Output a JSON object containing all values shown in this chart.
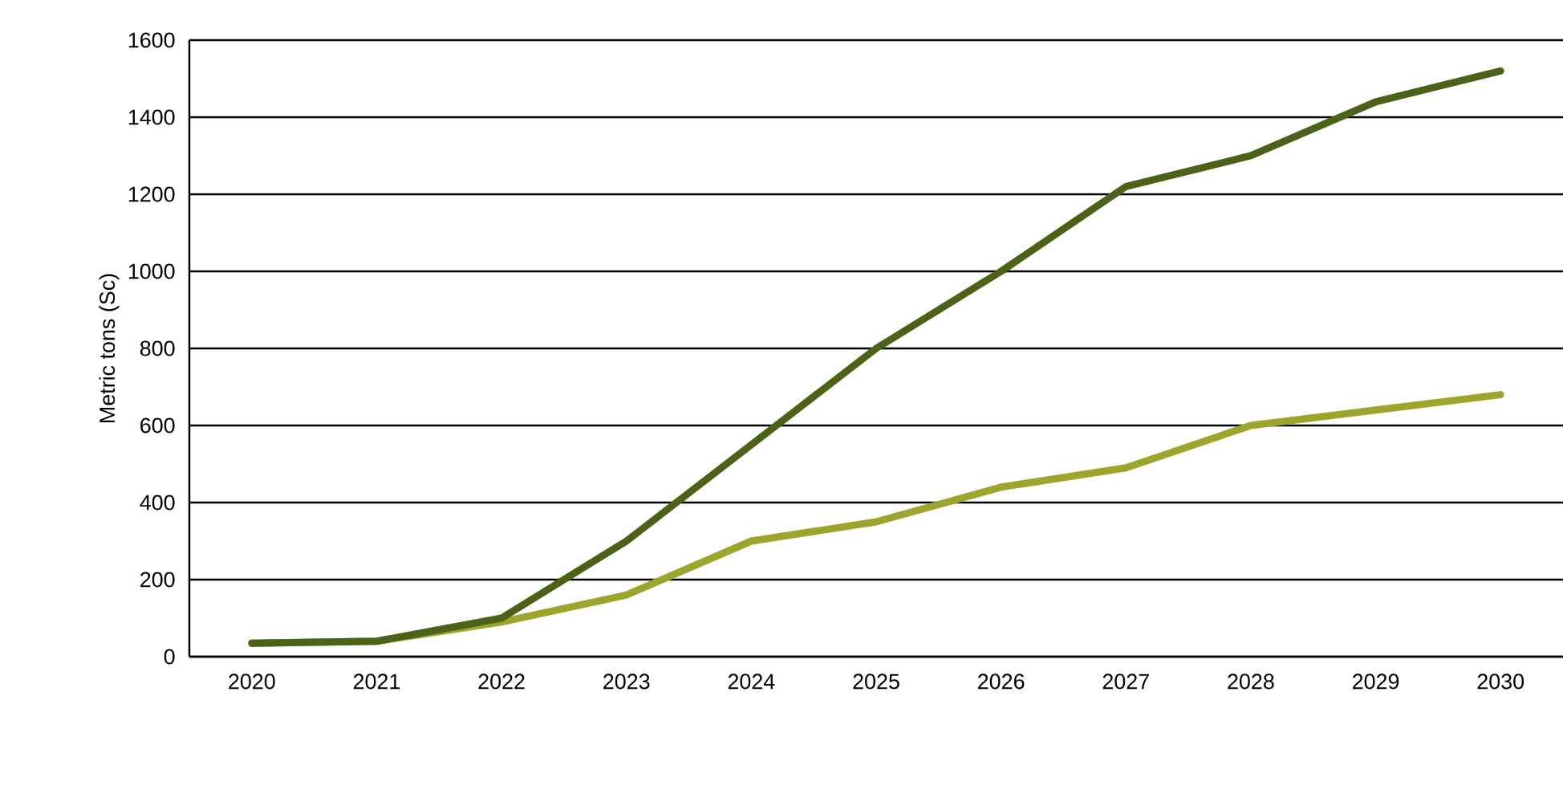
{
  "chart_data": {
    "type": "line",
    "ylabel": "Metric tons (Sc)",
    "categories": [
      "2020",
      "2021",
      "2022",
      "2023",
      "2024",
      "2025",
      "2026",
      "2027",
      "2028",
      "2029",
      "2030"
    ],
    "series": [
      {
        "color": "#9ea52d",
        "values": [
          35,
          40,
          90,
          160,
          300,
          350,
          440,
          490,
          600,
          640,
          680
        ]
      },
      {
        "color": "#4b6319",
        "values": [
          35,
          40,
          100,
          300,
          550,
          800,
          1000,
          1220,
          1300,
          1440,
          1520
        ]
      }
    ],
    "ylim": [
      0,
      1600
    ],
    "yticks": [
      0,
      200,
      400,
      600,
      800,
      1000,
      1200,
      1400,
      1600
    ],
    "grid": "y",
    "marker": "none",
    "line_style": "solid"
  }
}
